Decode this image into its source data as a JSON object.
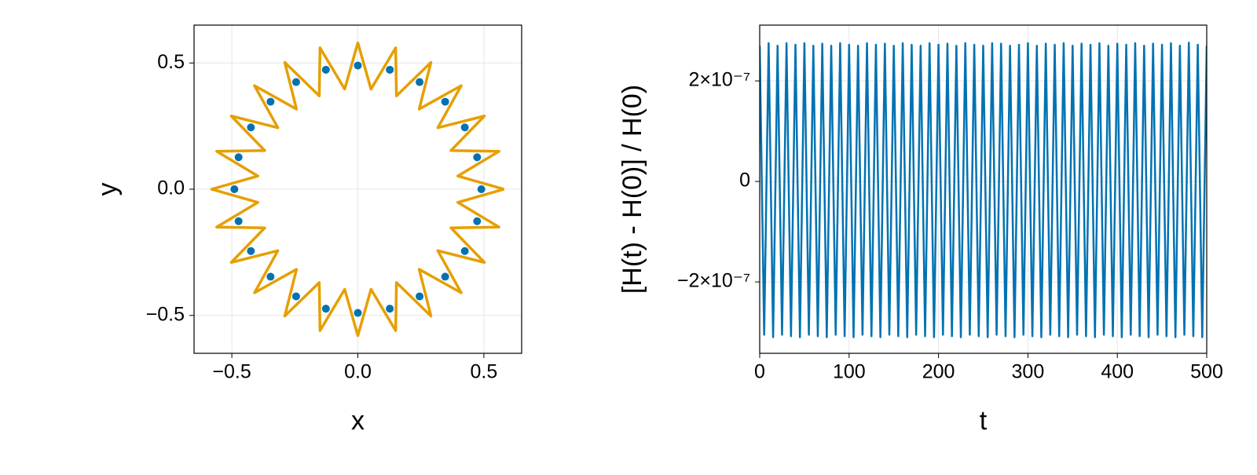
{
  "chart_data": [
    {
      "type": "line",
      "xlabel": "x",
      "ylabel": "y",
      "xlim": [
        -0.65,
        0.65
      ],
      "ylim": [
        -0.65,
        0.65
      ],
      "xticks": [
        {
          "value": -0.5,
          "label": "−0.5"
        },
        {
          "value": 0,
          "label": "0.0"
        },
        {
          "value": 0.5,
          "label": "0.5"
        }
      ],
      "yticks": [
        {
          "value": -0.5,
          "label": "−0.5"
        },
        {
          "value": 0,
          "label": "0.0"
        },
        {
          "value": 0.5,
          "label": "0.5"
        }
      ],
      "grid": true,
      "series": [
        {
          "style": "scatter",
          "color": "#0072b2",
          "x": [
            0.49,
            0.4733,
            0.4244,
            0.3465,
            0.245,
            0.1268,
            0,
            -0.1268,
            -0.245,
            -0.3465,
            -0.4244,
            -0.4733,
            -0.49,
            -0.4733,
            -0.4244,
            -0.3465,
            -0.245,
            -0.1268,
            0,
            0.1268,
            0.245,
            0.3465,
            0.4244,
            0.4733
          ],
          "values": [
            0,
            0.1268,
            0.245,
            0.3465,
            0.4244,
            0.4733,
            0.49,
            0.4733,
            0.4244,
            0.3465,
            0.245,
            0.1268,
            0,
            -0.1268,
            -0.245,
            -0.3465,
            -0.4244,
            -0.4733,
            -0.49,
            -0.4733,
            -0.4244,
            -0.3465,
            -0.245,
            -0.1268
          ]
        },
        {
          "style": "line",
          "color": "#e69f00",
          "x": [
            0.58,
            0.3966,
            0.5602,
            0.3696,
            0.5023,
            0.3174,
            0.4101,
            0.2435,
            0.29,
            0.1531,
            0.1501,
            0.0522,
            0,
            -0.0522,
            -0.1501,
            -0.1531,
            -0.29,
            -0.2435,
            -0.4101,
            -0.3174,
            -0.5023,
            -0.3696,
            -0.5602,
            -0.3966,
            -0.58,
            -0.3966,
            -0.5602,
            -0.3696,
            -0.5023,
            -0.3174,
            -0.4101,
            -0.2435,
            -0.29,
            -0.1531,
            -0.1501,
            -0.0522,
            0,
            0.0522,
            0.1501,
            0.1531,
            0.29,
            0.2435,
            0.4101,
            0.3174,
            0.5023,
            0.3696,
            0.5602,
            0.3966,
            0.58
          ],
          "values": [
            0,
            0.0522,
            0.1501,
            0.1531,
            0.29,
            0.2435,
            0.4101,
            0.3174,
            0.5023,
            0.3696,
            0.5602,
            0.3966,
            0.58,
            0.3966,
            0.5602,
            0.3696,
            0.5023,
            0.3174,
            0.4101,
            0.2435,
            0.29,
            0.1531,
            0.1501,
            0.0522,
            0,
            -0.0522,
            -0.1501,
            -0.1531,
            -0.29,
            -0.2435,
            -0.4101,
            -0.3174,
            -0.5023,
            -0.3696,
            -0.5602,
            -0.3966,
            -0.58,
            -0.3966,
            -0.5602,
            -0.3696,
            -0.5023,
            -0.3174,
            -0.4101,
            -0.2435,
            -0.29,
            -0.1531,
            -0.1501,
            -0.0522,
            0
          ]
        }
      ]
    },
    {
      "type": "line",
      "xlabel": "t",
      "ylabel": "[H(t) - H(0)] / H(0)",
      "xlim": [
        0,
        500
      ],
      "ylim": [
        -3.42e-07,
        3.11e-07
      ],
      "xticks": [
        0,
        100,
        200,
        300,
        400,
        500
      ],
      "yticks": [
        {
          "value": -2e-07,
          "label": "−2×10⁻⁷"
        },
        0,
        {
          "value": 2e-07,
          "label": "2×10⁻⁷"
        }
      ],
      "grid": true,
      "series": [
        {
          "style": "line",
          "color": "#0072b2",
          "x": [
            0,
            5,
            10,
            15,
            20,
            25,
            30,
            35,
            40,
            45,
            50,
            55,
            60,
            65,
            70,
            75,
            80,
            85,
            90,
            95,
            100,
            105,
            110,
            115,
            120,
            125,
            130,
            135,
            140,
            145,
            150,
            155,
            160,
            165,
            170,
            175,
            180,
            185,
            190,
            195,
            200,
            205,
            210,
            215,
            220,
            225,
            230,
            235,
            240,
            245,
            250,
            255,
            260,
            265,
            270,
            275,
            280,
            285,
            290,
            295,
            300,
            305,
            310,
            315,
            320,
            325,
            330,
            335,
            340,
            345,
            350,
            355,
            360,
            365,
            370,
            375,
            380,
            385,
            390,
            395,
            400,
            405,
            410,
            415,
            420,
            425,
            430,
            435,
            440,
            445,
            450,
            455,
            460,
            465,
            470,
            475,
            480,
            485,
            490,
            495,
            500
          ],
          "values": [
            2.7e-07,
            -3.05e-07,
            2.75e-07,
            -3.1e-07,
            2.7e-07,
            -3.05e-07,
            2.75e-07,
            -3.08e-07,
            2.72e-07,
            -3.1e-07,
            2.75e-07,
            -3.05e-07,
            2.7e-07,
            -3.08e-07,
            2.74e-07,
            -3.1e-07,
            2.7e-07,
            -3.05e-07,
            2.75e-07,
            -3.08e-07,
            2.72e-07,
            -3.1e-07,
            2.7e-07,
            -3.05e-07,
            2.75e-07,
            -3.08e-07,
            2.72e-07,
            -3.1e-07,
            2.74e-07,
            -3.05e-07,
            2.7e-07,
            -3.08e-07,
            2.75e-07,
            -3.1e-07,
            2.72e-07,
            -3.05e-07,
            2.7e-07,
            -3.08e-07,
            2.75e-07,
            -3.1e-07,
            2.72e-07,
            -3.05e-07,
            2.74e-07,
            -3.08e-07,
            2.7e-07,
            -3.1e-07,
            2.75e-07,
            -3.05e-07,
            2.72e-07,
            -3.08e-07,
            2.7e-07,
            -3.1e-07,
            2.75e-07,
            -3.05e-07,
            2.74e-07,
            -3.08e-07,
            2.7e-07,
            -3.1e-07,
            2.72e-07,
            -3.05e-07,
            2.75e-07,
            -3.08e-07,
            2.7e-07,
            -3.1e-07,
            2.74e-07,
            -3.05e-07,
            2.72e-07,
            -3.08e-07,
            2.75e-07,
            -3.1e-07,
            2.7e-07,
            -3.05e-07,
            2.74e-07,
            -3.08e-07,
            2.72e-07,
            -3.1e-07,
            2.75e-07,
            -3.05e-07,
            2.7e-07,
            -3.08e-07,
            2.74e-07,
            -3.1e-07,
            2.72e-07,
            -3.05e-07,
            2.75e-07,
            -3.08e-07,
            2.7e-07,
            -3.1e-07,
            2.74e-07,
            -3.05e-07,
            2.72e-07,
            -3.08e-07,
            2.75e-07,
            -3.1e-07,
            2.7e-07,
            -3.05e-07,
            2.76e-07,
            -3.08e-07,
            2.72e-07,
            -3.1e-07,
            2.7e-07
          ]
        }
      ]
    }
  ]
}
